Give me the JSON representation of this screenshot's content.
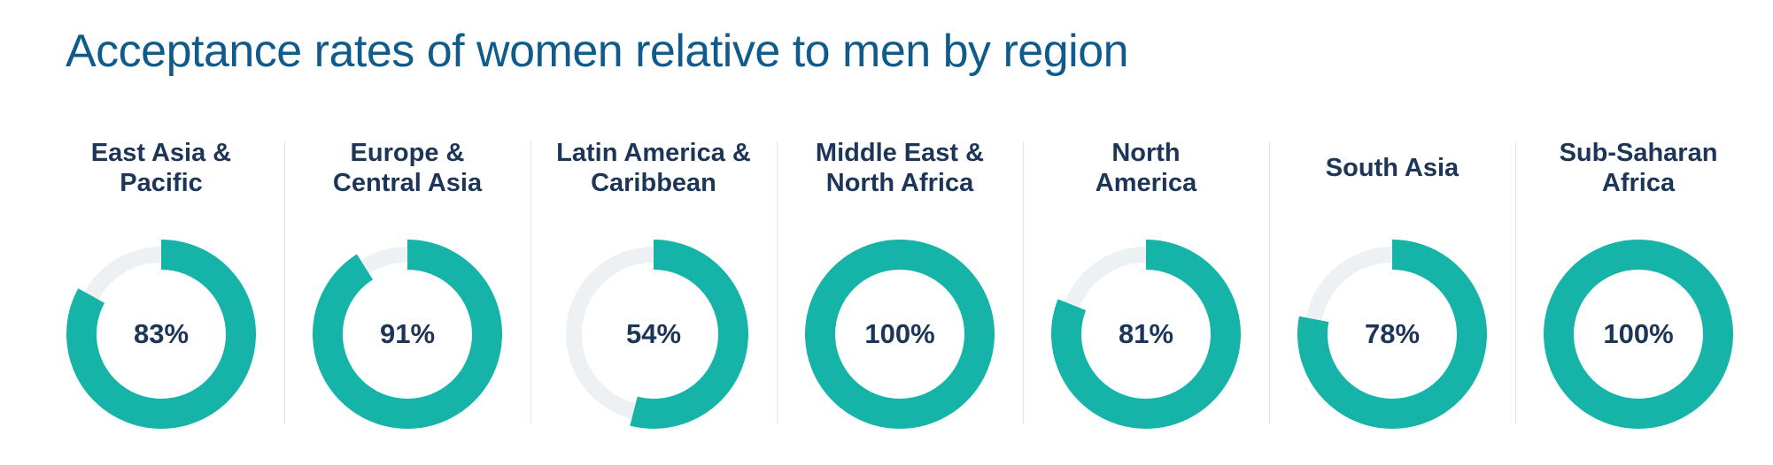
{
  "chart_data": {
    "type": "donut",
    "title": "Acceptance rates of women relative to men by region",
    "categories": [
      "East Asia &\nPacific",
      "Europe &\nCentral Asia",
      "Latin America &\nCaribbean",
      "Middle East &\nNorth Africa",
      "North\nAmerica",
      "South Asia",
      "Sub-Saharan\nAfrica"
    ],
    "values": [
      83,
      91,
      54,
      100,
      81,
      78,
      100
    ],
    "value_labels": [
      "83%",
      "91%",
      "54%",
      "100%",
      "81%",
      "78%",
      "100%"
    ],
    "color": "#16b4a8",
    "track_color": "#edf1f4"
  }
}
